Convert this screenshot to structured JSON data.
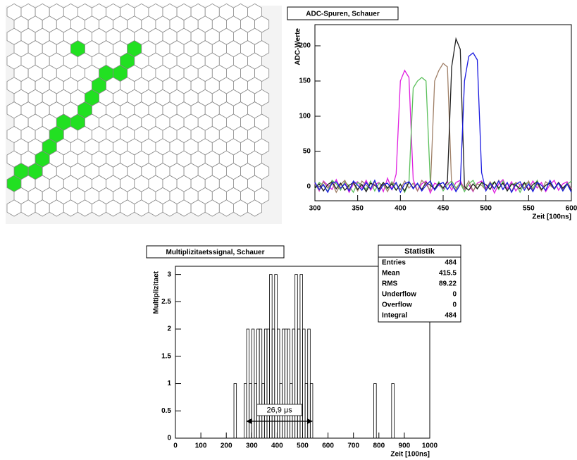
{
  "chart_data": [
    {
      "type": "line",
      "title": "ADC-Spuren, Schauer",
      "y_label": "ADC-Werte",
      "x_label": "Zeit [100ns]",
      "xlim": [
        300,
        600
      ],
      "ylim": [
        -20,
        230
      ],
      "xticks": [
        300,
        350,
        400,
        450,
        500,
        550,
        600
      ],
      "yticks": [
        0,
        50,
        100,
        150,
        200
      ],
      "x": [
        300,
        305,
        310,
        315,
        320,
        325,
        330,
        335,
        340,
        345,
        350,
        355,
        360,
        365,
        370,
        375,
        380,
        385,
        390,
        395,
        400,
        405,
        410,
        415,
        420,
        425,
        430,
        435,
        440,
        445,
        450,
        455,
        460,
        465,
        470,
        475,
        480,
        485,
        490,
        495,
        500,
        505,
        510,
        515,
        520,
        525,
        530,
        535,
        540,
        545,
        550,
        555,
        560,
        565,
        570,
        575,
        580,
        585,
        590,
        595,
        600
      ],
      "series": [
        {
          "color": "#e020e0",
          "values": [
            5,
            -6,
            8,
            2,
            -4,
            10,
            -3,
            6,
            -8,
            4,
            7,
            -2,
            9,
            -5,
            3,
            6,
            -7,
            12,
            -4,
            18,
            150,
            165,
            155,
            10,
            -6,
            4,
            8,
            -9,
            5,
            2,
            -3,
            7,
            -5,
            6,
            9,
            -4,
            3,
            -7,
            5,
            8,
            -2,
            6,
            -9,
            4,
            10,
            -3,
            7,
            -6,
            2,
            5,
            -4,
            8,
            -2,
            6,
            -7,
            3,
            9,
            -5,
            4,
            7,
            -3
          ]
        },
        {
          "color": "#5cc05c",
          "values": [
            -3,
            6,
            2,
            -7,
            9,
            4,
            -5,
            7,
            1,
            -8,
            6,
            3,
            -4,
            8,
            -6,
            5,
            2,
            -3,
            7,
            -5,
            4,
            -8,
            6,
            140,
            150,
            155,
            150,
            5,
            -4,
            7,
            -6,
            3,
            8,
            -2,
            5,
            -7,
            4,
            9,
            -3,
            6,
            -5,
            2,
            7,
            -4,
            8,
            -6,
            3,
            5,
            -8,
            4,
            6,
            -3,
            9,
            -5,
            2,
            7,
            -4,
            5,
            -6,
            3,
            8
          ]
        },
        {
          "color": "#a08068",
          "values": [
            4,
            -5,
            7,
            -2,
            6,
            -8,
            3,
            9,
            -4,
            5,
            -6,
            8,
            2,
            -3,
            7,
            -5,
            4,
            -7,
            6,
            3,
            -4,
            8,
            -2,
            5,
            -6,
            9,
            3,
            -5,
            150,
            165,
            175,
            170,
            0,
            -4,
            6,
            -3,
            8,
            -6,
            4,
            2,
            -5,
            7,
            -3,
            9,
            -4,
            5,
            -7,
            6,
            3,
            -2,
            8,
            -5,
            4,
            -6,
            7,
            2,
            -3,
            6,
            -4,
            5,
            -2
          ]
        },
        {
          "color": "#202020",
          "values": [
            -2,
            4,
            -6,
            3,
            7,
            -3,
            5,
            -5,
            2,
            6,
            -4,
            3,
            -7,
            5,
            2,
            -3,
            6,
            -2,
            4,
            -5,
            3,
            -6,
            7,
            -2,
            4,
            -4,
            6,
            2,
            -3,
            5,
            -2,
            8,
            170,
            210,
            195,
            0,
            -5,
            4,
            -3,
            6,
            3,
            -4,
            7,
            -2,
            5,
            -6,
            4,
            2,
            -3,
            6,
            -5,
            3,
            7,
            -4,
            2,
            5,
            -3,
            6,
            -2,
            4,
            -5
          ]
        },
        {
          "color": "#1a1ae0",
          "values": [
            6,
            -4,
            3,
            -8,
            5,
            7,
            -2,
            4,
            -6,
            8,
            2,
            -5,
            6,
            -3,
            9,
            -7,
            3,
            5,
            -4,
            6,
            -8,
            4,
            7,
            -3,
            5,
            -6,
            2,
            8,
            -5,
            3,
            6,
            -4,
            5,
            -7,
            3,
            150,
            185,
            190,
            180,
            20,
            -6,
            5,
            -3,
            8,
            -4,
            6,
            -8,
            3,
            7,
            -5,
            4,
            -7,
            6,
            2,
            -5,
            9,
            -3,
            5,
            -6,
            4,
            -8
          ]
        }
      ]
    },
    {
      "type": "histogram",
      "title": "Multiplizitaetssignal, Schauer",
      "y_label": "Multiplizitaet",
      "x_label": "Zeit [100ns]",
      "xlim": [
        0,
        1000
      ],
      "ylim": [
        0,
        3.15
      ],
      "xticks": [
        0,
        100,
        200,
        300,
        400,
        500,
        600,
        700,
        800,
        900,
        1000
      ],
      "yticks": [
        0,
        0.5,
        1,
        1.5,
        2,
        2.5,
        3
      ],
      "bins": [
        0,
        10,
        20,
        30,
        40,
        50,
        60,
        70,
        80,
        90,
        100,
        110,
        120,
        130,
        140,
        150,
        160,
        170,
        180,
        190,
        200,
        210,
        220,
        230,
        240,
        250,
        260,
        270,
        280,
        290,
        300,
        310,
        320,
        330,
        340,
        350,
        360,
        370,
        380,
        390,
        400,
        410,
        420,
        430,
        440,
        450,
        460,
        470,
        480,
        490,
        500,
        510,
        520,
        530,
        540,
        550,
        560,
        570,
        580,
        590,
        600,
        610,
        620,
        630,
        640,
        650,
        660,
        670,
        680,
        690,
        700,
        710,
        720,
        730,
        740,
        750,
        760,
        770,
        780,
        790,
        800,
        810,
        820,
        830,
        840,
        850,
        860,
        870,
        880,
        890,
        900,
        910,
        920,
        930,
        940,
        950,
        960,
        970,
        980,
        990,
        1000
      ],
      "values": [
        0,
        0,
        0,
        0,
        0,
        0,
        0,
        0,
        0,
        0,
        0,
        0,
        0,
        0,
        0,
        0,
        0,
        0,
        0,
        0,
        0,
        0,
        0,
        1,
        0,
        0,
        0,
        1,
        2,
        1,
        2,
        1,
        2,
        2,
        1,
        2,
        2,
        3,
        2,
        3,
        2,
        1,
        2,
        2,
        2,
        1,
        2,
        3,
        2,
        3,
        2,
        1,
        2,
        1,
        0,
        0,
        0,
        0,
        0,
        0,
        0,
        0,
        0,
        0,
        0,
        0,
        0,
        0,
        0,
        0,
        0,
        0,
        0,
        0,
        0,
        0,
        0,
        0,
        1,
        0,
        0,
        0,
        0,
        0,
        0,
        1,
        0,
        0,
        0,
        0,
        0,
        0,
        0,
        0,
        0,
        0,
        0,
        0,
        0,
        0
      ],
      "color": "#000000",
      "annotation": {
        "text": "26,9 μs",
        "x_range": [
          278,
          540
        ],
        "y": 0.31
      },
      "stats": {
        "title": "Statistik",
        "rows": [
          [
            "Entries",
            484
          ],
          [
            "Mean",
            415.5
          ],
          [
            "RMS",
            89.22
          ],
          [
            "Underflow",
            0
          ],
          [
            "Overflow",
            0
          ],
          [
            "Integral",
            484
          ]
        ]
      }
    }
  ]
}
